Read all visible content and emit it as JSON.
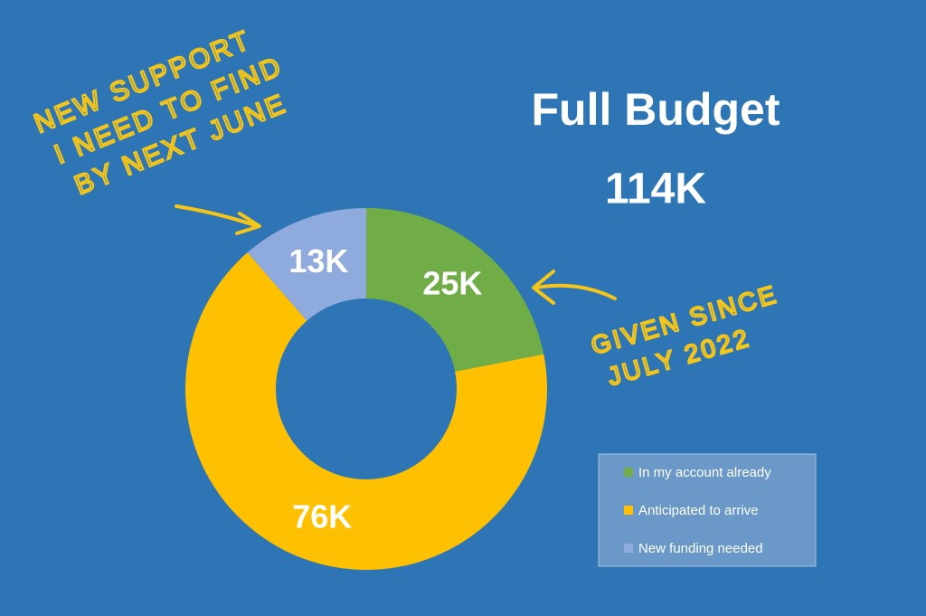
{
  "chart_data": {
    "type": "donut",
    "title": "Full Budget",
    "subtitle": "114K",
    "categories": [
      "In my account already",
      "Anticipated to arrive",
      "New funding needed"
    ],
    "values": [
      25,
      76,
      13
    ],
    "value_labels": [
      "25K",
      "76K",
      "13K"
    ],
    "colors": [
      "#70ad47",
      "#ffc000",
      "#8faadc"
    ],
    "legend": "bottom-right",
    "annotations": [
      {
        "lines": [
          "NEW SUPPORT",
          "I NEED TO FIND",
          "BY NEXT JUNE"
        ]
      },
      {
        "lines": [
          "GIVEN SINCE",
          "JULY 2022"
        ]
      }
    ]
  }
}
